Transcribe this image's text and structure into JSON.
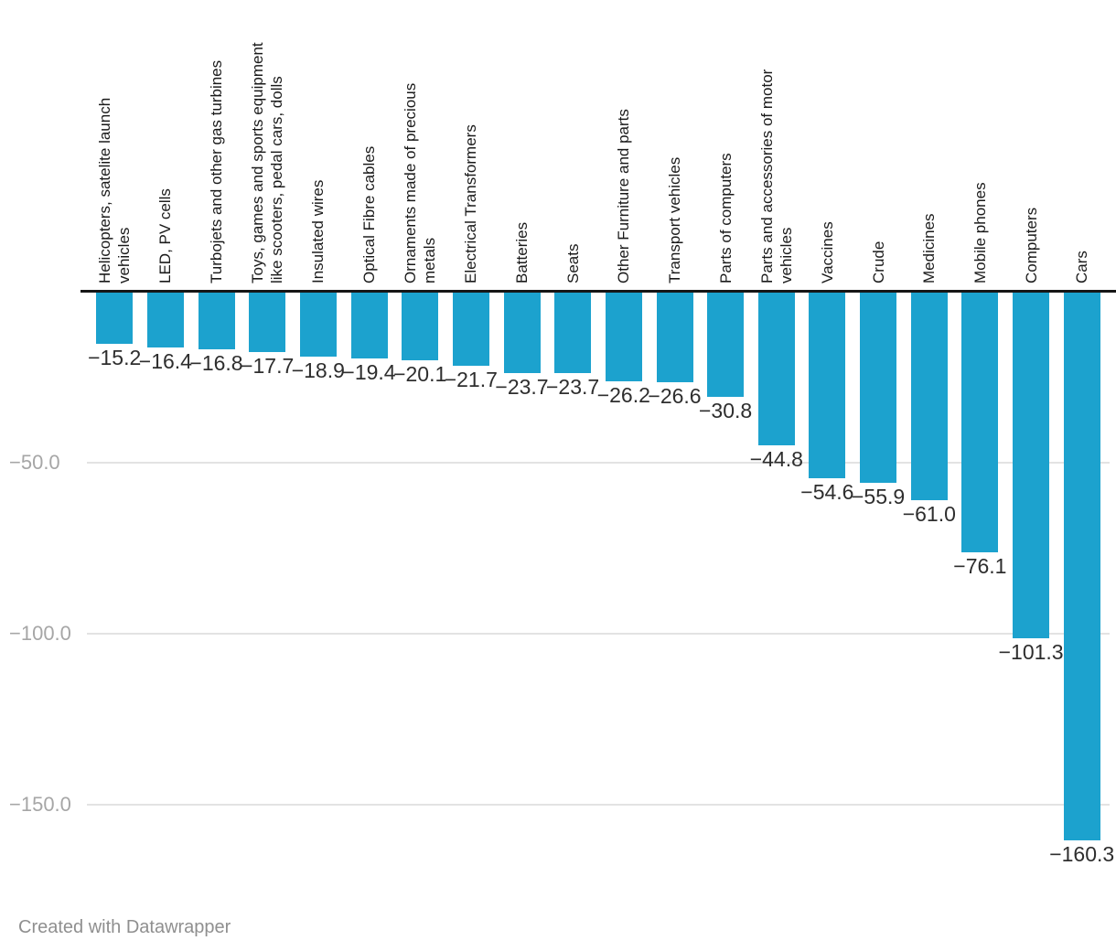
{
  "chart_data": {
    "type": "bar",
    "orientation": "vertical-negative",
    "title": "",
    "xlabel": "",
    "ylabel": "",
    "categories": [
      "Helicopters, satelite launch\nvehicles",
      "LED, PV cells",
      "Turbojets and other gas turbines",
      "Toys, games and sports equipment\nlike scooters, pedal cars, dolls",
      "Insulated wires",
      "Optical Fibre cables",
      "Ornaments made of precious\nmetals",
      "Electrical Transformers",
      "Batteries",
      "Seats",
      "Other Furniture and parts",
      "Transport vehicles",
      "Parts of computers",
      "Parts and accessories of motor\nvehicles",
      "Vaccines",
      "Crude",
      "Medicines",
      "Mobile phones",
      "Computers",
      "Cars"
    ],
    "values": [
      -15.2,
      -16.4,
      -16.8,
      -17.7,
      -18.9,
      -19.4,
      -20.1,
      -21.7,
      -23.7,
      -23.7,
      -26.2,
      -26.6,
      -30.8,
      -44.8,
      -54.6,
      -55.9,
      -61.0,
      -76.1,
      -101.3,
      -160.3
    ],
    "ylim": [
      -170,
      0
    ],
    "yticks": [
      -50.0,
      -100.0,
      -150.0
    ],
    "ytick_labels": [
      "−50.0",
      "−100.0",
      "−150.0"
    ],
    "grid": true,
    "value_labels_shown": true,
    "legend": "none"
  },
  "colors": {
    "bar": "#1ca2ce",
    "zero_line": "#161616",
    "gridline": "#e3e3e3",
    "tick_label": "#a6a6a6",
    "value_label": "#2e2e2e",
    "category_label": "#1a1a1a",
    "footer_text": "#8f8f8f",
    "background": "#ffffff"
  },
  "footer": {
    "credit": "Created with Datawrapper"
  }
}
